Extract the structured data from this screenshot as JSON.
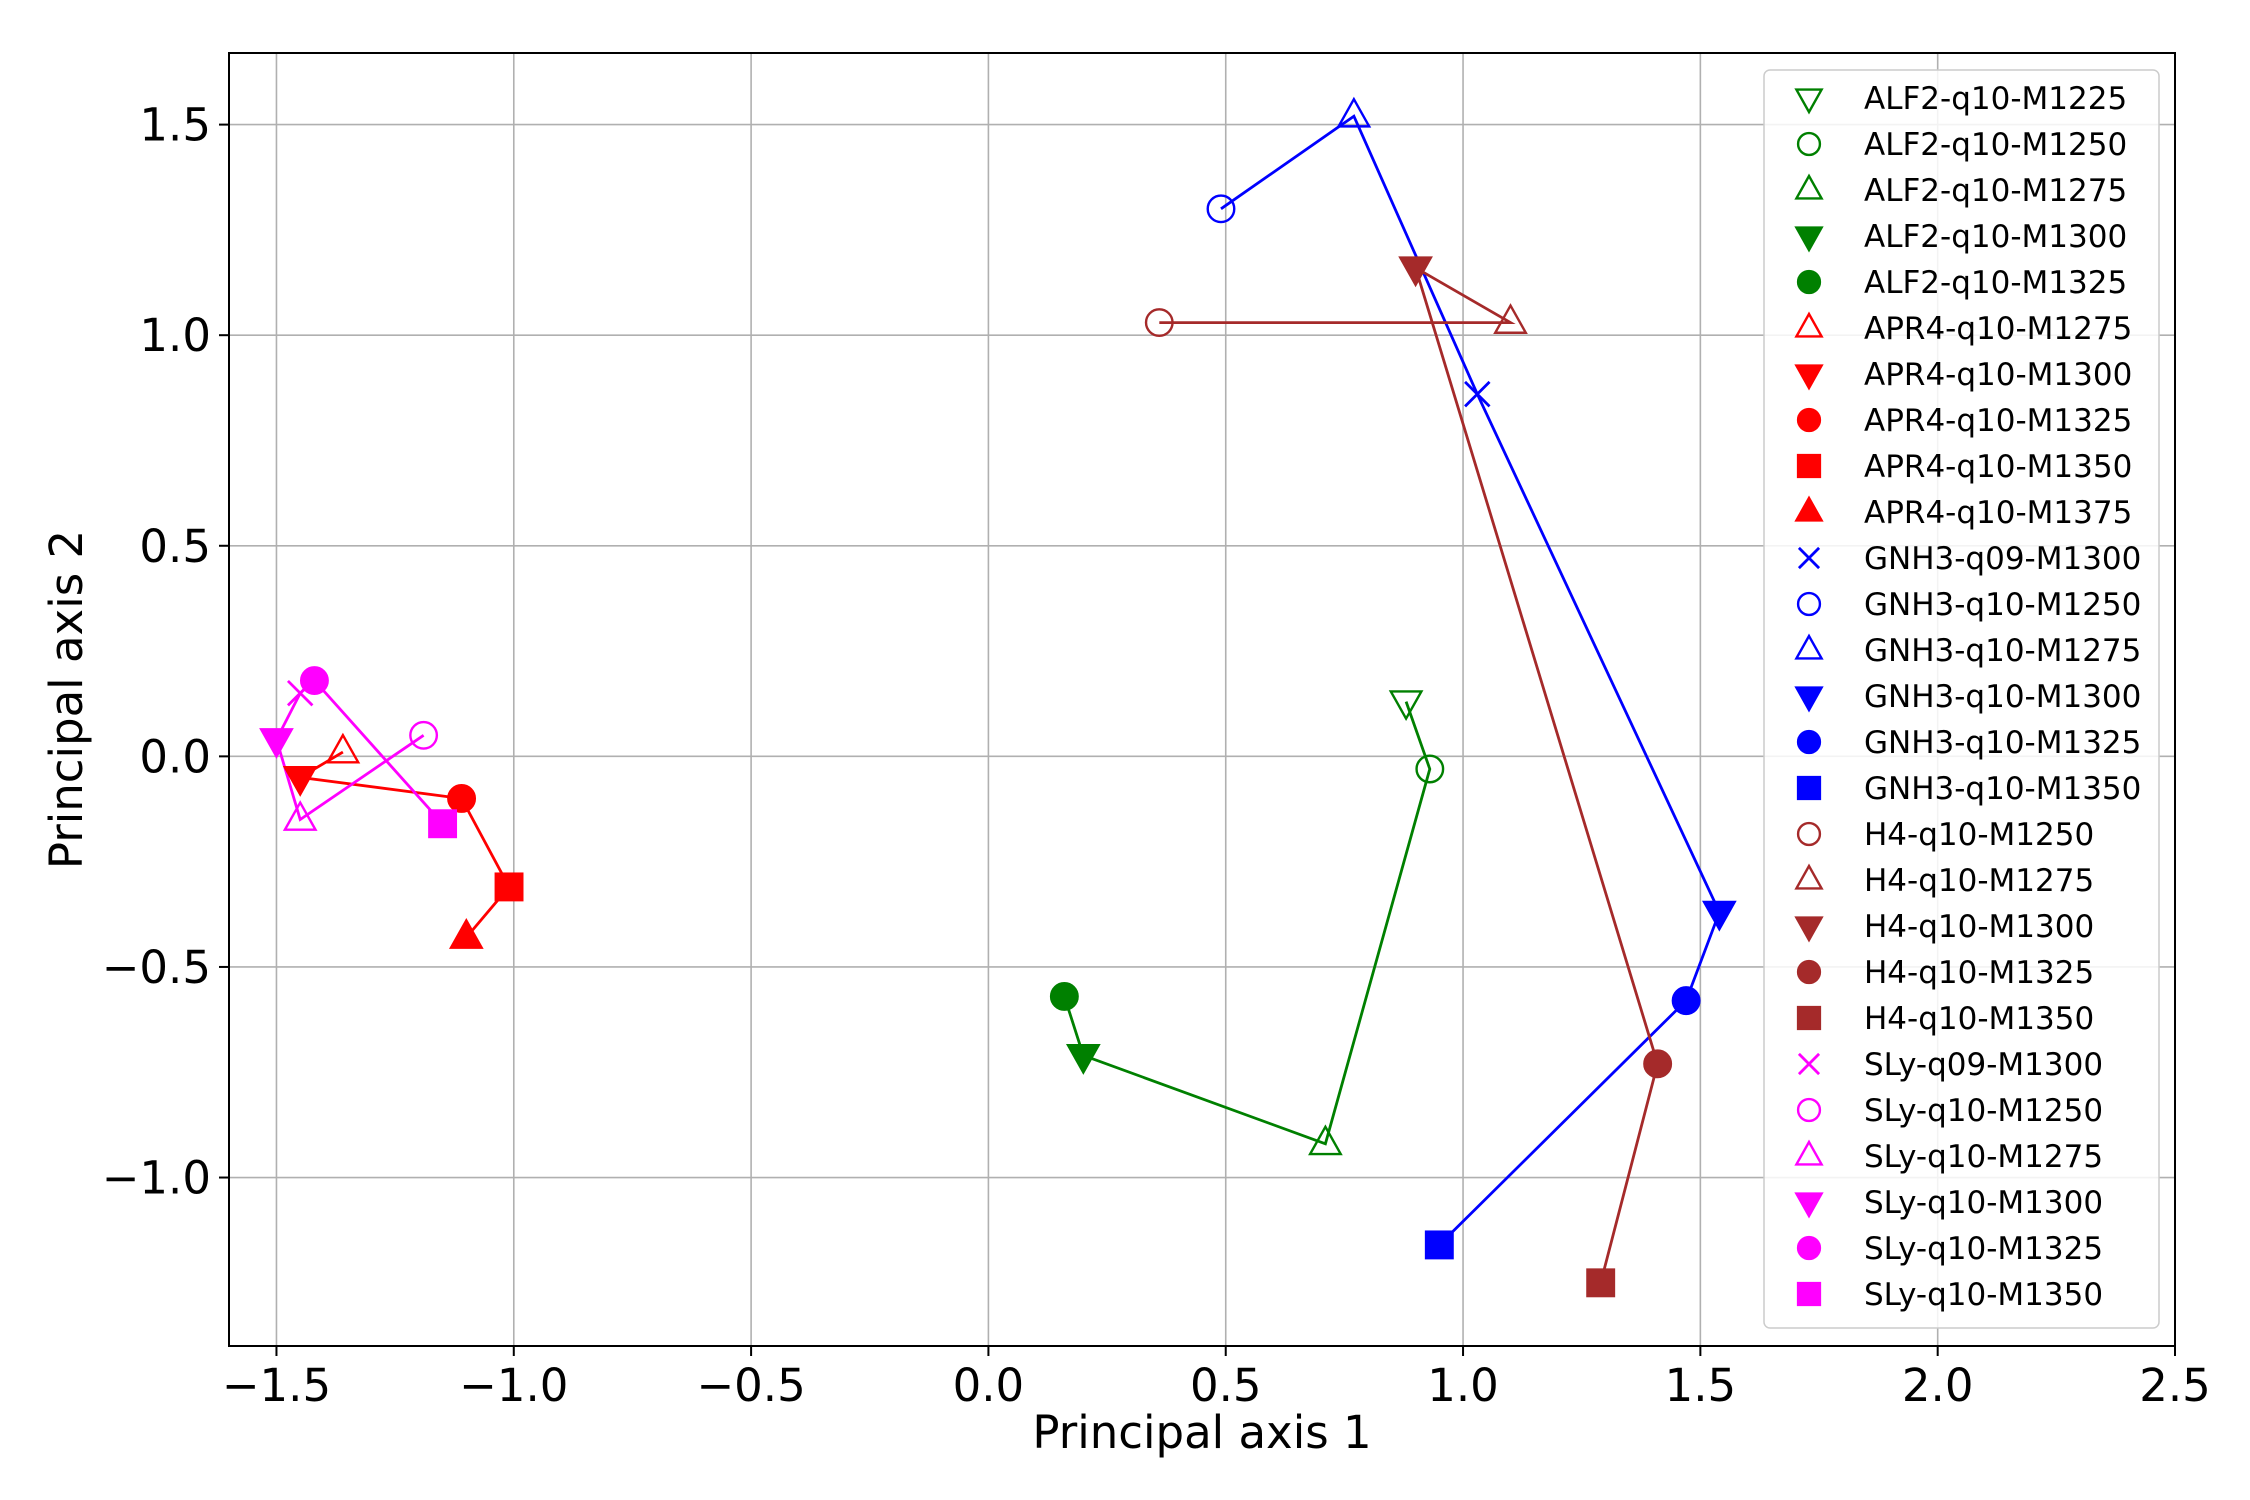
{
  "chart_data": {
    "type": "scatter",
    "title": "",
    "xlabel": "Principal axis 1",
    "ylabel": "Principal axis 2",
    "xlim": [
      -1.6,
      2.5
    ],
    "ylim": [
      -1.4,
      1.67
    ],
    "xticks": [
      -1.5,
      -1.0,
      -0.5,
      0.0,
      0.5,
      1.0,
      1.5,
      2.0,
      2.5
    ],
    "yticks": [
      -1.0,
      -0.5,
      0.0,
      0.5,
      1.0,
      1.5
    ],
    "grid": true,
    "legend_position": "top-right",
    "groups": [
      {
        "color": "#008000",
        "series": [
          {
            "name": "ALF2-q10-M1225",
            "marker": "triangle-down-open",
            "x": 0.88,
            "y": 0.13
          },
          {
            "name": "ALF2-q10-M1250",
            "marker": "circle-open",
            "x": 0.93,
            "y": -0.03
          },
          {
            "name": "ALF2-q10-M1275",
            "marker": "triangle-up-open",
            "x": 0.71,
            "y": -0.92
          },
          {
            "name": "ALF2-q10-M1300",
            "marker": "triangle-down-filled",
            "x": 0.2,
            "y": -0.71
          },
          {
            "name": "ALF2-q10-M1325",
            "marker": "circle-filled",
            "x": 0.16,
            "y": -0.57
          }
        ]
      },
      {
        "color": "#ff0000",
        "series": [
          {
            "name": "APR4-q10-M1275",
            "marker": "triangle-up-open",
            "x": -1.36,
            "y": 0.01
          },
          {
            "name": "APR4-q10-M1300",
            "marker": "triangle-down-filled",
            "x": -1.45,
            "y": -0.05
          },
          {
            "name": "APR4-q10-M1325",
            "marker": "circle-filled",
            "x": -1.11,
            "y": -0.1
          },
          {
            "name": "APR4-q10-M1350",
            "marker": "square-filled",
            "x": -1.01,
            "y": -0.31
          },
          {
            "name": "APR4-q10-M1375",
            "marker": "triangle-up-filled",
            "x": -1.1,
            "y": -0.43
          }
        ]
      },
      {
        "color": "#0000ff",
        "series": [
          {
            "name": "GNH3-q09-M1300",
            "marker": "x",
            "x": 1.03,
            "y": 0.86
          },
          {
            "name": "GNH3-q10-M1250",
            "marker": "circle-open",
            "x": 0.49,
            "y": 1.3
          },
          {
            "name": "GNH3-q10-M1275",
            "marker": "triangle-up-open",
            "x": 0.77,
            "y": 1.52
          },
          {
            "name": "GNH3-q10-M1300",
            "marker": "triangle-down-filled",
            "x": 1.54,
            "y": -0.37
          },
          {
            "name": "GNH3-q10-M1325",
            "marker": "circle-filled",
            "x": 1.47,
            "y": -0.58
          },
          {
            "name": "GNH3-q10-M1350",
            "marker": "square-filled",
            "x": 0.95,
            "y": -1.16
          }
        ]
      },
      {
        "color": "#a52a2a",
        "series": [
          {
            "name": "H4-q10-M1250",
            "marker": "circle-open",
            "x": 0.36,
            "y": 1.03
          },
          {
            "name": "H4-q10-M1275",
            "marker": "triangle-up-open",
            "x": 1.1,
            "y": 1.03
          },
          {
            "name": "H4-q10-M1300",
            "marker": "triangle-down-filled",
            "x": 0.9,
            "y": 1.16
          },
          {
            "name": "H4-q10-M1325",
            "marker": "circle-filled",
            "x": 1.41,
            "y": -0.73
          },
          {
            "name": "H4-q10-M1350",
            "marker": "square-filled",
            "x": 1.29,
            "y": -1.25
          }
        ]
      },
      {
        "color": "#ff00ff",
        "series": [
          {
            "name": "SLy-q09-M1300",
            "marker": "x",
            "x": -1.45,
            "y": 0.15
          },
          {
            "name": "SLy-q10-M1250",
            "marker": "circle-open",
            "x": -1.19,
            "y": 0.05
          },
          {
            "name": "SLy-q10-M1275",
            "marker": "triangle-up-open",
            "x": -1.45,
            "y": -0.15
          },
          {
            "name": "SLy-q10-M1300",
            "marker": "triangle-down-filled",
            "x": -1.5,
            "y": 0.04
          },
          {
            "name": "SLy-q10-M1325",
            "marker": "circle-filled",
            "x": -1.42,
            "y": 0.18
          },
          {
            "name": "SLy-q10-M1350",
            "marker": "square-filled",
            "x": -1.15,
            "y": -0.16
          }
        ]
      }
    ],
    "lines": [
      {
        "color": "#008000",
        "points": [
          [
            0.88,
            0.13
          ],
          [
            0.93,
            -0.03
          ],
          [
            0.71,
            -0.92
          ],
          [
            0.2,
            -0.71
          ],
          [
            0.16,
            -0.57
          ]
        ]
      },
      {
        "color": "#ff0000",
        "points": [
          [
            -1.36,
            0.01
          ],
          [
            -1.45,
            -0.05
          ],
          [
            -1.11,
            -0.1
          ],
          [
            -1.01,
            -0.31
          ],
          [
            -1.1,
            -0.43
          ]
        ]
      },
      {
        "color": "#0000ff",
        "points": [
          [
            0.49,
            1.3
          ],
          [
            0.77,
            1.52
          ],
          [
            1.03,
            0.86
          ],
          [
            1.54,
            -0.37
          ],
          [
            1.47,
            -0.58
          ],
          [
            0.95,
            -1.16
          ]
        ]
      },
      {
        "color": "#a52a2a",
        "points": [
          [
            0.36,
            1.03
          ],
          [
            1.1,
            1.03
          ],
          [
            0.9,
            1.16
          ],
          [
            1.41,
            -0.73
          ],
          [
            1.29,
            -1.25
          ]
        ]
      },
      {
        "color": "#ff00ff",
        "points": [
          [
            -1.19,
            0.05
          ],
          [
            -1.45,
            -0.15
          ],
          [
            -1.5,
            0.04
          ],
          [
            -1.45,
            0.15
          ],
          [
            -1.42,
            0.18
          ],
          [
            -1.15,
            -0.16
          ]
        ]
      }
    ]
  }
}
